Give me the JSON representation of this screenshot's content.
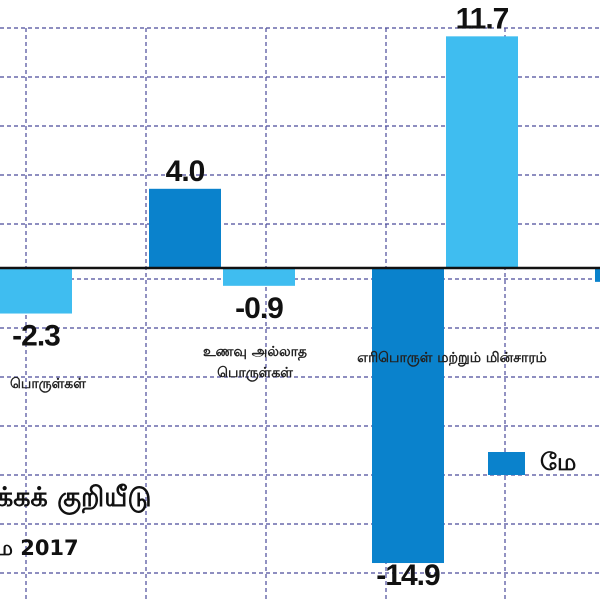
{
  "chart_data": {
    "type": "bar",
    "title": "க்கக் குறியீடு",
    "subtitle": "ம 2017",
    "categories": [
      "பொருள்கள்",
      "உணவு அல்லாத பொருள்கள்",
      "எரிபொருள் மற்றும் மின்சாரம்",
      ""
    ],
    "series": [
      {
        "name": "மே",
        "color": "#0a82cc",
        "values": [
          null,
          4.0,
          -14.9,
          -0.7
        ],
        "labels": [
          "",
          "4.0",
          "-14.9",
          "-"
        ]
      },
      {
        "color": "#3fbdf0",
        "values": [
          -2.3,
          -0.9,
          11.7,
          null
        ],
        "labels": [
          "-2.3",
          "-0.9",
          "11.7",
          ""
        ]
      }
    ],
    "legend": {
      "entries": [
        "மே"
      ],
      "placement": "bottom-right"
    },
    "grid": true,
    "gridline_color": "#4a4a9a",
    "baseline_color": "#111111"
  }
}
